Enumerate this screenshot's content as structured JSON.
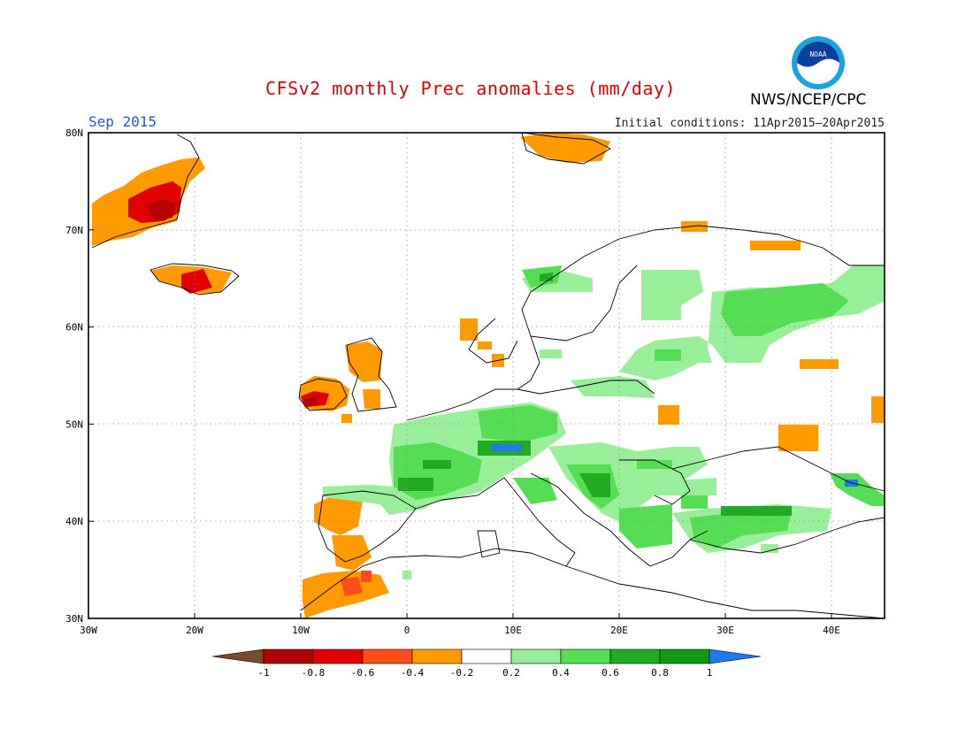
{
  "title": "CFSv2 monthly Prec anomalies (mm/day)",
  "period": "Sep 2015",
  "initial_conditions": "Initial conditions: 11Apr2015–20Apr2015",
  "agency": "NWS/NCEP/CPC",
  "logo": {
    "text": "NOAA",
    "icon": "noaa-logo-icon"
  },
  "map": {
    "lon_range": [
      -30,
      45
    ],
    "lat_range": [
      30,
      80
    ],
    "lon_ticks": [
      "30W",
      "20W",
      "10W",
      "0",
      "10E",
      "20E",
      "30E",
      "40E"
    ],
    "lat_ticks": [
      "30N",
      "40N",
      "50N",
      "60N",
      "70N",
      "80N"
    ],
    "grid": "dotted"
  },
  "colorbar": {
    "labels": [
      "-1",
      "-0.8",
      "-0.6",
      "-0.4",
      "-0.2",
      "0.2",
      "0.4",
      "0.6",
      "0.8",
      "1"
    ],
    "colors": [
      "#7a4a2a",
      "#b30000",
      "#e00000",
      "#ff4d1a",
      "#ff9a00",
      "#ffffff",
      "#99ee99",
      "#55dd55",
      "#22aa22",
      "#119911",
      "#2277ee"
    ]
  }
}
